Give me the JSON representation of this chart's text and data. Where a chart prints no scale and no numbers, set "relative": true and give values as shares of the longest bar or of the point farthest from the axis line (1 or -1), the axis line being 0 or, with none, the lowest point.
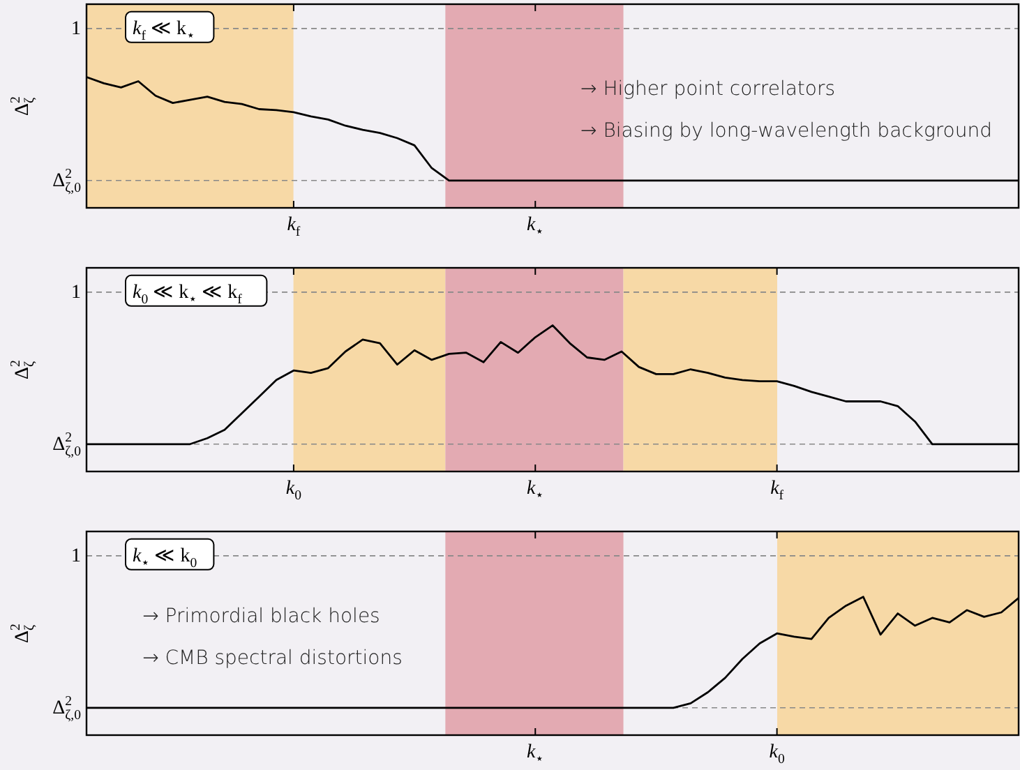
{
  "chart_data": [
    {
      "type": "line",
      "relative": true,
      "ylabel": "Δ$^{2}$$_{ζ}$",
      "categories": [
        null,
        null,
        null,
        null,
        null,
        null,
        null,
        null,
        null,
        null,
        null,
        null,
        "k$_{f}$",
        null,
        null,
        null,
        null,
        null,
        null,
        null,
        null,
        null,
        null,
        null,
        null,
        null,
        "k$_{⋆}$",
        null,
        null,
        null,
        null,
        null,
        null,
        null,
        null,
        null,
        null,
        null,
        null,
        null,
        null,
        null,
        null,
        null,
        null,
        null,
        null,
        null,
        null,
        null,
        null,
        null,
        null,
        null,
        null
      ],
      "ref_lines": [
        {
          "axis": "y",
          "value": 1.47,
          "label": "1",
          "color": "#888888",
          "line_style": "dashed"
        },
        {
          "axis": "y",
          "value": 0,
          "label": "Δ$^{2}$$_{ζ,0}$",
          "color": "#888888",
          "line_style": "dashed"
        }
      ],
      "annotations": [
        "k$_{f}$ ≪ k$_{⋆}$",
        "→  Higher point correlators",
        "→  Biasing by long-wavelength background"
      ],
      "series": [
        {
          "color": "#000000",
          "values": [
            1,
            0.94,
            0.9,
            0.96,
            0.82,
            0.75,
            0.78,
            0.81,
            0.76,
            0.74,
            0.69,
            0.68,
            0.66,
            0.62,
            0.59,
            0.53,
            0.49,
            0.46,
            0.41,
            0.34,
            0.12,
            0,
            0,
            0,
            0,
            0,
            0,
            0,
            0,
            0,
            0,
            0,
            0,
            0,
            0,
            0,
            0,
            0,
            0,
            0,
            0,
            0,
            0,
            0,
            0,
            0,
            0,
            0,
            0,
            0,
            0,
            0,
            0,
            0,
            0
          ]
        }
      ]
    },
    {
      "type": "line",
      "relative": true,
      "ylabel": "Δ$^{2}$$_{ζ}$",
      "categories": [
        null,
        null,
        null,
        null,
        null,
        null,
        null,
        null,
        null,
        null,
        null,
        null,
        "k$_{0}$",
        null,
        null,
        null,
        null,
        null,
        null,
        null,
        null,
        null,
        null,
        null,
        null,
        null,
        "k$_{⋆}$",
        null,
        null,
        null,
        null,
        null,
        null,
        null,
        null,
        null,
        null,
        null,
        null,
        null,
        "k$_{f}$",
        null,
        null,
        null,
        null,
        null,
        null,
        null,
        null,
        null,
        null,
        null,
        null,
        null,
        null
      ],
      "ref_lines": [
        {
          "axis": "y",
          "value": 1.28,
          "label": "1",
          "color": "#888888",
          "line_style": "dashed"
        },
        {
          "axis": "y",
          "value": 0,
          "label": "Δ$^{2}$$_{ζ,0}$",
          "color": "#888888",
          "line_style": "dashed"
        }
      ],
      "annotations": [
        "k$_{0}$ ≪ k$_{⋆}$ ≪ k$_{f}$"
      ],
      "series": [
        {
          "color": "#000000",
          "values": [
            0,
            0,
            0,
            0,
            0,
            0,
            0,
            0.05,
            0.12,
            0.26,
            0.4,
            0.54,
            0.62,
            0.6,
            0.64,
            0.78,
            0.88,
            0.85,
            0.67,
            0.79,
            0.71,
            0.76,
            0.77,
            0.69,
            0.86,
            0.77,
            0.9,
            1,
            0.85,
            0.73,
            0.71,
            0.78,
            0.65,
            0.59,
            0.59,
            0.63,
            0.6,
            0.56,
            0.54,
            0.53,
            0.53,
            0.49,
            0.44,
            0.4,
            0.36,
            0.36,
            0.36,
            0.32,
            0.19,
            0,
            0,
            0,
            0,
            0,
            0
          ]
        }
      ]
    },
    {
      "type": "line",
      "relative": true,
      "ylabel": "Δ$^{2}$$_{ζ}$",
      "categories": [
        null,
        null,
        null,
        null,
        null,
        null,
        null,
        null,
        null,
        null,
        null,
        null,
        null,
        null,
        null,
        null,
        null,
        null,
        null,
        null,
        null,
        null,
        null,
        null,
        null,
        null,
        "k$_{⋆}$",
        null,
        null,
        null,
        null,
        null,
        null,
        null,
        null,
        null,
        null,
        null,
        null,
        null,
        "k$_{0}$",
        null,
        null,
        null,
        null,
        null,
        null,
        null,
        null,
        null,
        null,
        null,
        null,
        null,
        null
      ],
      "ref_lines": [
        {
          "axis": "y",
          "value": 1.37,
          "label": "1",
          "color": "#888888",
          "line_style": "dashed"
        },
        {
          "axis": "y",
          "value": 0,
          "label": "Δ$^{2}$$_{ζ,0}$",
          "color": "#888888",
          "line_style": "dashed"
        }
      ],
      "annotations": [
        "k$_{⋆}$ ≪ k$_{0}$",
        "→  Primordial black holes",
        "→  CMB spectral distortions"
      ],
      "series": [
        {
          "color": "#000000",
          "values": [
            0,
            0,
            0,
            0,
            0,
            0,
            0,
            0,
            0,
            0,
            0,
            0,
            0,
            0,
            0,
            0,
            0,
            0,
            0,
            0,
            0,
            0,
            0,
            0,
            0,
            0,
            0,
            0,
            0,
            0,
            0,
            0,
            0,
            0,
            0,
            0.04,
            0.14,
            0.27,
            0.44,
            0.58,
            0.67,
            0.64,
            0.62,
            0.81,
            0.92,
            1,
            0.66,
            0.85,
            0.74,
            0.81,
            0.77,
            0.88,
            0.82,
            0.86,
            0.99
          ]
        }
      ]
    }
  ]
}
